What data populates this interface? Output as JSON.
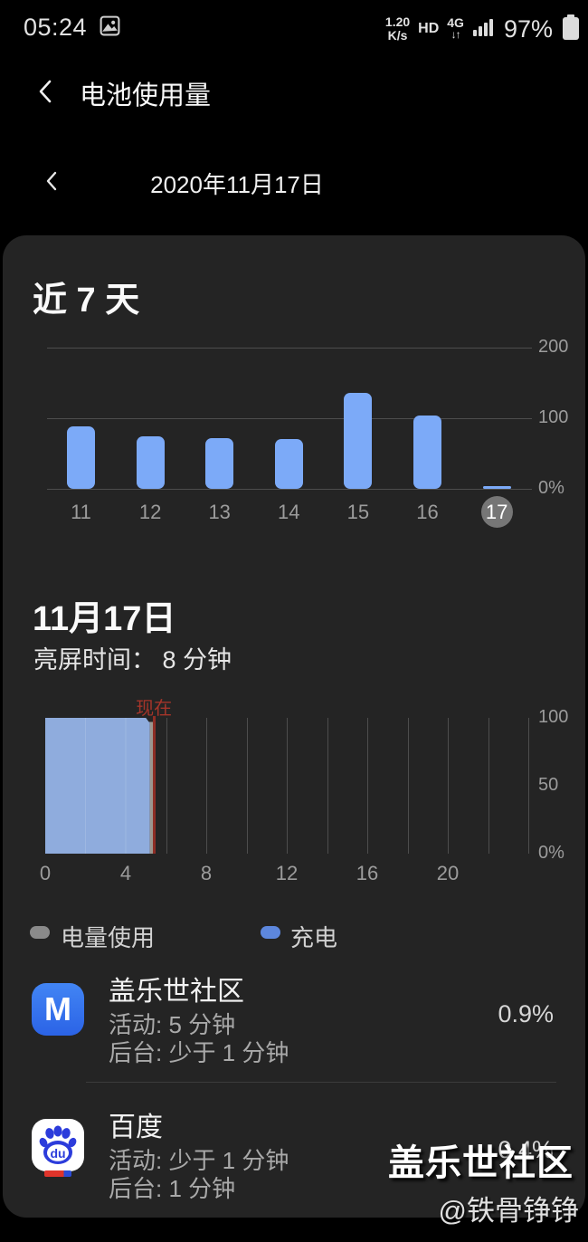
{
  "status_bar": {
    "time": "05:24",
    "net_speed_value": "1.20",
    "net_speed_unit": "K/s",
    "hd": "HD",
    "network": "4G",
    "net_arrows": "↓↑",
    "battery_percent": "97%"
  },
  "header": {
    "title": "电池使用量"
  },
  "date_nav": {
    "date": "2020年11月17日"
  },
  "week_section": {
    "title": "近 7 天"
  },
  "day_section": {
    "title": "11月17日",
    "screen_on_label": "亮屏时间：",
    "screen_on_value": "8 分钟"
  },
  "legend": {
    "usage": "电量使用",
    "charging": "充电"
  },
  "apps": [
    {
      "name": "盖乐世社区",
      "active": "活动: 5 分钟",
      "background": "后台: 少于 1 分钟",
      "percent": "0.9%",
      "icon": "samsung-members-icon",
      "icon_letter": "M"
    },
    {
      "name": "百度",
      "active": "活动: 少于 1 分钟",
      "background": "后台: 1 分钟",
      "percent": "0.4%",
      "icon": "baidu-icon",
      "icon_letter": "du"
    }
  ],
  "watermark": {
    "line1": "盖乐世社区",
    "line2": "@铁骨铮铮"
  },
  "colors": {
    "card_bg": "#242424",
    "bar_blue": "#7caaf8",
    "area_blue": "#94b2e5",
    "usage_gray": "#9b968f",
    "legend_gray": "#8a8a8a",
    "legend_blue": "#5d87dd",
    "now_red": "#8e2d25",
    "axis_text": "#9c9c9c",
    "selected_chip": "#767676"
  },
  "chart_data": [
    {
      "type": "bar",
      "title": "近 7 天",
      "categories": [
        "11",
        "12",
        "13",
        "14",
        "15",
        "16",
        "17"
      ],
      "values": [
        88,
        75,
        72,
        70,
        136,
        104,
        3
      ],
      "unit": "percent battery used per day",
      "ylim": [
        0,
        200
      ],
      "yticks": [
        200,
        100,
        0
      ],
      "ytick_labels": [
        "200",
        "100",
        "0%"
      ],
      "grid": "horizontal",
      "legend_position": "none",
      "selected_index": 6,
      "bar_color": "#7caaf8"
    },
    {
      "type": "area",
      "title": "11月17日",
      "xlim": [
        0,
        24
      ],
      "xticks": [
        0,
        4,
        8,
        12,
        16,
        20
      ],
      "xtick_labels": [
        "0",
        "4",
        "8",
        "12",
        "16",
        "20"
      ],
      "ylim": [
        0,
        100
      ],
      "yticks": [
        100,
        50,
        0
      ],
      "ytick_labels": [
        "100",
        "50",
        "0%"
      ],
      "grid": "vertical",
      "grid_hours": [
        6,
        8,
        10,
        12,
        14,
        16,
        18,
        20,
        22,
        24
      ],
      "grid_hours_under_area": [
        2,
        4
      ],
      "now_hour": 5.4,
      "now_label": "现在",
      "series": [
        {
          "name": "充电",
          "color": "#94b2e5",
          "points": [
            {
              "x": 0,
              "y": 100
            },
            {
              "x": 5.0,
              "y": 100
            },
            {
              "x": 5.15,
              "y": 97
            },
            {
              "x": 5.2,
              "y": 97
            }
          ]
        },
        {
          "name": "电量使用",
          "color": "#9b968f",
          "points": [
            {
              "x": 5.2,
              "y": 97
            },
            {
              "x": 5.4,
              "y": 97
            }
          ]
        }
      ]
    }
  ]
}
